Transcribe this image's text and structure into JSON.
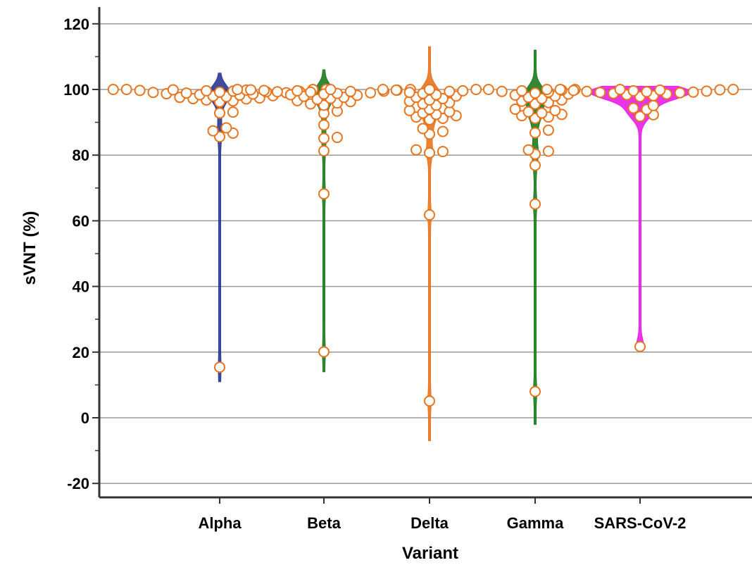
{
  "chart_data": {
    "type": "scatter",
    "subtype": "violin-dot",
    "title": "",
    "xlabel": "Variant",
    "ylabel": "sVNT (%)",
    "ylim": [
      -25,
      125
    ],
    "yticks": [
      -20,
      0,
      20,
      40,
      60,
      80,
      100,
      120
    ],
    "grid": true,
    "marker_color": "#E8741E",
    "marker_fill": "#FFFFFF",
    "categories": [
      "Alpha",
      "Beta",
      "Delta",
      "Gamma",
      "SARS-CoV-2"
    ],
    "series": [
      {
        "category": "Alpha",
        "line_color": "#2B3990",
        "range": [
          11,
          105
        ],
        "values": [
          15.4,
          85.6,
          86.7,
          87.4,
          88.3,
          92.8,
          93.1,
          96.2,
          96.5,
          96.8,
          97.1,
          97.2,
          97.4,
          97.6,
          97.8,
          98.0,
          98.1,
          98.3,
          98.4,
          98.6,
          98.7,
          98.9,
          99.0,
          99.1,
          99.2,
          99.3,
          99.4,
          99.5,
          99.6,
          99.7,
          99.8,
          99.9,
          100.0,
          100.0,
          100.0,
          100.0
        ]
      },
      {
        "category": "Beta",
        "line_color": "#1E7B1E",
        "range": [
          14,
          106
        ],
        "values": [
          20.1,
          68.2,
          81.3,
          85.1,
          85.4,
          89.2,
          92.7,
          93.4,
          95.2,
          95.6,
          95.9,
          96.3,
          96.6,
          97.0,
          97.3,
          97.6,
          97.9,
          98.2,
          98.4,
          98.6,
          98.8,
          99.0,
          99.2,
          99.3,
          99.4,
          99.5,
          99.6,
          99.7,
          99.8,
          99.9,
          100.0,
          100.0,
          100.0
        ]
      },
      {
        "category": "Delta",
        "line_color": "#E8741E",
        "range": [
          -7,
          113
        ],
        "values": [
          5.1,
          61.8,
          80.7,
          81.1,
          81.6,
          86.4,
          87.2,
          88.1,
          90.8,
          91.2,
          91.6,
          92.0,
          92.4,
          92.8,
          93.2,
          93.6,
          94.0,
          95.2,
          95.6,
          96.0,
          96.4,
          96.8,
          97.2,
          97.6,
          98.0,
          98.4,
          98.8,
          99.1,
          99.4,
          99.6,
          99.8,
          100.0,
          100.0,
          100.0
        ]
      },
      {
        "category": "Gamma",
        "line_color": "#1E7B1E",
        "range": [
          -2,
          112
        ],
        "values": [
          8.0,
          65.1,
          76.9,
          80.3,
          81.2,
          81.6,
          86.8,
          87.6,
          91.2,
          91.6,
          92.0,
          92.4,
          92.8,
          93.2,
          93.6,
          94.0,
          95.6,
          96.0,
          96.4,
          96.8,
          97.2,
          97.6,
          98.0,
          98.3,
          98.6,
          98.9,
          99.2,
          99.4,
          99.6,
          99.8,
          100.0,
          100.0
        ]
      },
      {
        "category": "SARS-CoV-2",
        "line_color": "#E81EE8",
        "range": [
          22,
          101
        ],
        "values": [
          21.7,
          91.8,
          92.3,
          93.9,
          94.3,
          95.1,
          97.8,
          98.1,
          98.4,
          98.6,
          98.8,
          99.0,
          99.1,
          99.2,
          99.3,
          99.4,
          99.5,
          99.6,
          99.7,
          99.8,
          99.9,
          100.0,
          100.0,
          100.0,
          100.0
        ]
      }
    ]
  }
}
